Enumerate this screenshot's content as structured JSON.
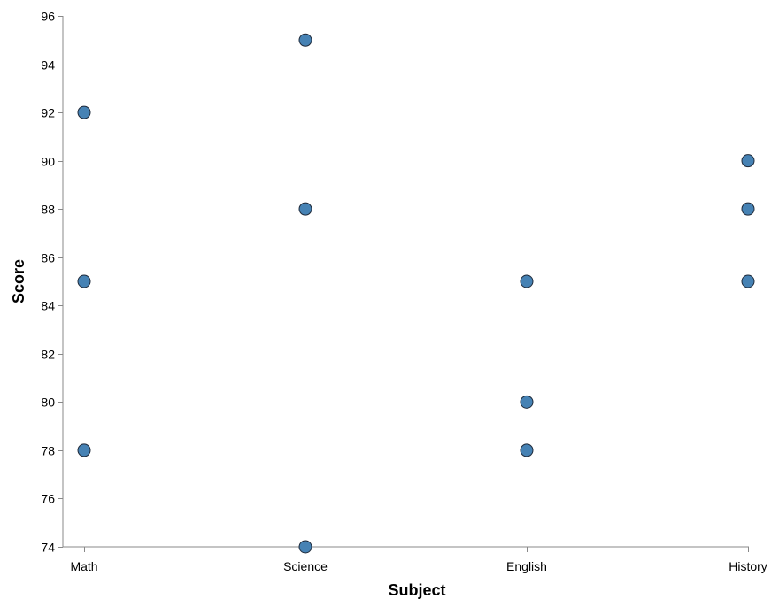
{
  "chart_data": {
    "type": "scatter",
    "title": "",
    "xlabel": "Subject",
    "ylabel": "Score",
    "categories": [
      "Math",
      "Science",
      "English",
      "History"
    ],
    "ylim": [
      74,
      96
    ],
    "y_ticks": [
      74,
      76,
      78,
      80,
      82,
      84,
      86,
      88,
      90,
      92,
      94,
      96
    ],
    "grid": false,
    "point_color": "#4682b4",
    "point_stroke": "#1f2a3a",
    "points": [
      {
        "x": "Math",
        "y": 92
      },
      {
        "x": "Math",
        "y": 85
      },
      {
        "x": "Math",
        "y": 78
      },
      {
        "x": "Science",
        "y": 95
      },
      {
        "x": "Science",
        "y": 88
      },
      {
        "x": "Science",
        "y": 74
      },
      {
        "x": "English",
        "y": 85
      },
      {
        "x": "English",
        "y": 80
      },
      {
        "x": "English",
        "y": 78
      },
      {
        "x": "History",
        "y": 90
      },
      {
        "x": "History",
        "y": 88
      },
      {
        "x": "History",
        "y": 85
      }
    ]
  }
}
